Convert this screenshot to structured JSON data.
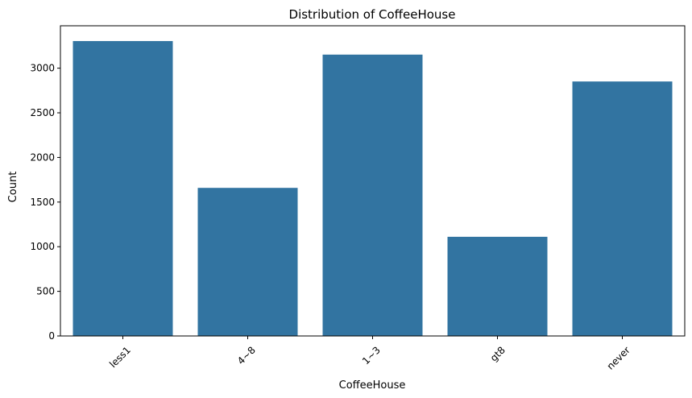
{
  "chart_data": {
    "type": "bar",
    "title": "Distribution of CoffeeHouse",
    "xlabel": "CoffeeHouse",
    "ylabel": "Count",
    "categories": [
      "less1",
      "4~8",
      "1~3",
      "gt8",
      "never"
    ],
    "values": [
      3304,
      1659,
      3152,
      1111,
      2851
    ],
    "ylim": [
      0,
      3475
    ],
    "yticks": [
      0,
      500,
      1000,
      1500,
      2000,
      2500,
      3000
    ],
    "grid": false,
    "legend": "none",
    "bar_color": "#3274a1",
    "xtick_rotation_deg": 45
  }
}
